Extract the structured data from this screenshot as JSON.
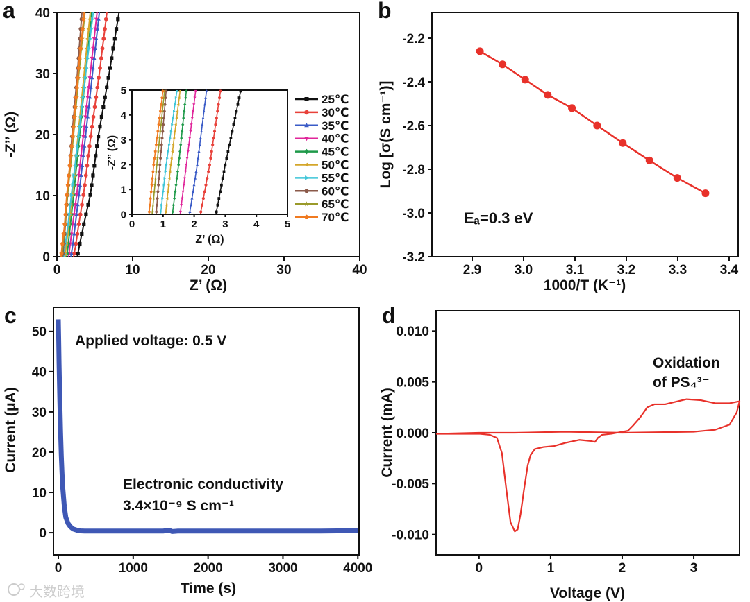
{
  "watermark": "大数跨境",
  "chart_data": [
    {
      "panel": "a",
      "type": "line",
      "xlabel": "Z’ (Ω)",
      "ylabel": "-Z’’ (Ω)",
      "xlim": [
        0,
        40
      ],
      "ylim": [
        0,
        40
      ],
      "xticks": [
        0,
        10,
        20,
        30,
        40
      ],
      "yticks": [
        0,
        10,
        20,
        30,
        40
      ],
      "legend_placement": "right-middle",
      "series": [
        {
          "name": "25℃",
          "color": "#111111",
          "marker": "square",
          "points": [
            [
              2.7,
              0
            ],
            [
              3.0,
              2
            ],
            [
              3.5,
              5
            ],
            [
              4.4,
              10
            ],
            [
              5.5,
              20
            ],
            [
              6.9,
              30
            ],
            [
              8.2,
              40
            ]
          ]
        },
        {
          "name": "30℃",
          "color": "#e8413a",
          "marker": "circle",
          "points": [
            [
              2.2,
              0
            ],
            [
              2.5,
              2
            ],
            [
              2.85,
              5
            ],
            [
              3.5,
              10
            ],
            [
              4.5,
              20
            ],
            [
              5.6,
              30
            ],
            [
              6.6,
              40
            ]
          ]
        },
        {
          "name": "35℃",
          "color": "#3a5bc7",
          "marker": "triangle-up",
          "points": [
            [
              1.85,
              0
            ],
            [
              2.1,
              2
            ],
            [
              2.4,
              5
            ],
            [
              2.9,
              10
            ],
            [
              3.8,
              20
            ],
            [
              4.7,
              30
            ],
            [
              5.6,
              40
            ]
          ]
        },
        {
          "name": "40℃",
          "color": "#e0259a",
          "marker": "triangle-down",
          "points": [
            [
              1.55,
              0
            ],
            [
              1.75,
              2
            ],
            [
              2.05,
              5
            ],
            [
              2.6,
              10
            ],
            [
              3.5,
              20
            ],
            [
              4.4,
              30
            ],
            [
              5.3,
              40
            ]
          ]
        },
        {
          "name": "45℃",
          "color": "#1f9a4a",
          "marker": "diamond",
          "points": [
            [
              1.3,
              0
            ],
            [
              1.5,
              2
            ],
            [
              1.75,
              5
            ],
            [
              2.2,
              10
            ],
            [
              3.0,
              20
            ],
            [
              3.8,
              30
            ],
            [
              4.6,
              40
            ]
          ]
        },
        {
          "name": "50℃",
          "color": "#d4a62a",
          "marker": "triangle-left",
          "points": [
            [
              1.08,
              0
            ],
            [
              1.25,
              2
            ],
            [
              1.55,
              5
            ],
            [
              2.0,
              10
            ],
            [
              2.8,
              20
            ],
            [
              3.6,
              30
            ],
            [
              4.4,
              40
            ]
          ]
        },
        {
          "name": "55℃",
          "color": "#3ec5d8",
          "marker": "triangle-right",
          "points": [
            [
              0.92,
              0
            ],
            [
              1.1,
              2
            ],
            [
              1.45,
              5
            ],
            [
              1.9,
              10
            ],
            [
              2.9,
              20
            ],
            [
              3.8,
              30
            ],
            [
              4.8,
              40
            ]
          ]
        },
        {
          "name": "60℃",
          "color": "#8b5a4a",
          "marker": "hexagon",
          "points": [
            [
              0.78,
              0
            ],
            [
              0.9,
              2
            ],
            [
              1.1,
              5
            ],
            [
              1.4,
              10
            ],
            [
              2.0,
              20
            ],
            [
              2.7,
              30
            ],
            [
              3.3,
              40
            ]
          ]
        },
        {
          "name": "65℃",
          "color": "#9a9a2a",
          "marker": "star",
          "points": [
            [
              0.65,
              0
            ],
            [
              0.8,
              2
            ],
            [
              1.05,
              5
            ],
            [
              1.4,
              10
            ],
            [
              2.2,
              20
            ],
            [
              2.9,
              30
            ],
            [
              3.7,
              40
            ]
          ]
        },
        {
          "name": "70℃",
          "color": "#f07a20",
          "marker": "pentagon",
          "points": [
            [
              0.55,
              0
            ],
            [
              0.7,
              2
            ],
            [
              1.0,
              5
            ],
            [
              1.3,
              10
            ],
            [
              2.1,
              20
            ],
            [
              2.8,
              30
            ],
            [
              3.6,
              40
            ]
          ]
        }
      ],
      "inset": {
        "xlabel": "Z’ (Ω)",
        "ylabel": "-Z’’ (Ω)",
        "xlim": [
          0,
          5
        ],
        "ylim": [
          0,
          5
        ],
        "xticks": [
          0,
          1,
          2,
          3,
          4,
          5
        ],
        "yticks": [
          0,
          1,
          2,
          3,
          4,
          5
        ]
      }
    },
    {
      "panel": "b",
      "type": "line",
      "xlabel": "1000/T (K⁻¹)",
      "ylabel": "Log [σ(S cm⁻¹)]",
      "xlim": [
        2.8216,
        3.4176
      ],
      "ylim": [
        -3.2,
        -2.0825
      ],
      "xticks": [
        "2.9",
        "3.0",
        "3.1",
        "3.2",
        "3.3",
        "3.4"
      ],
      "yticks": [
        "-2.2",
        "-2.4",
        "-2.6",
        "-2.8",
        "-3.0",
        "-3.2"
      ],
      "annotation": "Eₐ=0.3 eV",
      "color": "#e8312a",
      "x": [
        2.915,
        2.959,
        3.003,
        3.047,
        3.094,
        3.143,
        3.193,
        3.245,
        3.299,
        3.354
      ],
      "y": [
        -2.26,
        -2.32,
        -2.39,
        -2.46,
        -2.52,
        -2.6,
        -2.68,
        -2.76,
        -2.84,
        -2.91
      ]
    },
    {
      "panel": "c",
      "type": "line",
      "xlabel": "Time (s)",
      "ylabel": "Current (μA)",
      "xlim": [
        -65,
        4016
      ],
      "ylim": [
        -5.5,
        56
      ],
      "xticks": [
        "0",
        "1000",
        "2000",
        "3000",
        "4000"
      ],
      "yticks": [
        "0",
        "10",
        "20",
        "30",
        "40",
        "50"
      ],
      "annotation_top": "Applied voltage: 0.5 V",
      "annotation_1": "Electronic conductivity",
      "annotation_2": "3.4×10⁻⁹ S cm⁻¹",
      "color": "#3f58b5",
      "x": [
        0,
        5,
        10,
        20,
        30,
        40,
        50,
        60,
        80,
        100,
        130,
        160,
        200,
        250,
        300,
        350,
        400,
        600,
        1000,
        1400,
        1480,
        1520,
        1600,
        2000,
        2500,
        3000,
        3500,
        4000
      ],
      "y": [
        53,
        48,
        42,
        33,
        25,
        19,
        14.5,
        11,
        6.5,
        3.8,
        2.3,
        1.5,
        0.9,
        0.6,
        0.45,
        0.4,
        0.4,
        0.4,
        0.4,
        0.4,
        0.6,
        0.3,
        0.4,
        0.4,
        0.4,
        0.4,
        0.4,
        0.5
      ]
    },
    {
      "panel": "d",
      "type": "line",
      "xlabel": "Voltage (V)",
      "ylabel": "Current (mA)",
      "xlim": [
        -0.6,
        3.64
      ],
      "ylim": [
        -0.012,
        0.012
      ],
      "xticks": [
        "0",
        "1",
        "2",
        "3"
      ],
      "yticks": [
        "0.010",
        "0.005",
        "0.000",
        "-0.005",
        "-0.010"
      ],
      "annotation_1": "Oxidation",
      "annotation_2": "of PS₄³⁻",
      "color": "#e8312a",
      "x": [
        -0.6,
        0.0,
        0.15,
        0.25,
        0.32,
        0.38,
        0.44,
        0.5,
        0.54,
        0.58,
        0.63,
        0.68,
        0.72,
        0.78,
        0.9,
        1.05,
        1.2,
        1.4,
        1.55,
        1.62,
        1.66,
        1.72,
        1.85,
        2.0,
        2.08,
        2.15,
        2.25,
        2.35,
        2.45,
        2.6,
        2.9,
        3.1,
        3.3,
        3.5,
        3.64,
        3.6,
        3.5,
        3.3,
        3.0,
        2.0,
        1.2,
        0.5,
        0.0,
        -0.6
      ],
      "y": [
        -0.0001,
        -0.0001,
        -0.0002,
        -0.0005,
        -0.002,
        -0.0055,
        -0.0088,
        -0.0097,
        -0.0095,
        -0.008,
        -0.0055,
        -0.0032,
        -0.0022,
        -0.0016,
        -0.0014,
        -0.0013,
        -0.001,
        -0.0007,
        -0.0008,
        -0.0009,
        -0.0005,
        -0.0002,
        -0.0001,
        0.0001,
        0.0002,
        0.0007,
        0.0015,
        0.0025,
        0.0028,
        0.0028,
        0.0033,
        0.0032,
        0.0029,
        0.0029,
        0.0031,
        0.002,
        0.0008,
        0.0003,
        0.0001,
        0.0,
        0.0001,
        0.0,
        0.0,
        -0.0001
      ]
    }
  ],
  "panel_letters": [
    "a",
    "b",
    "c",
    "d"
  ]
}
